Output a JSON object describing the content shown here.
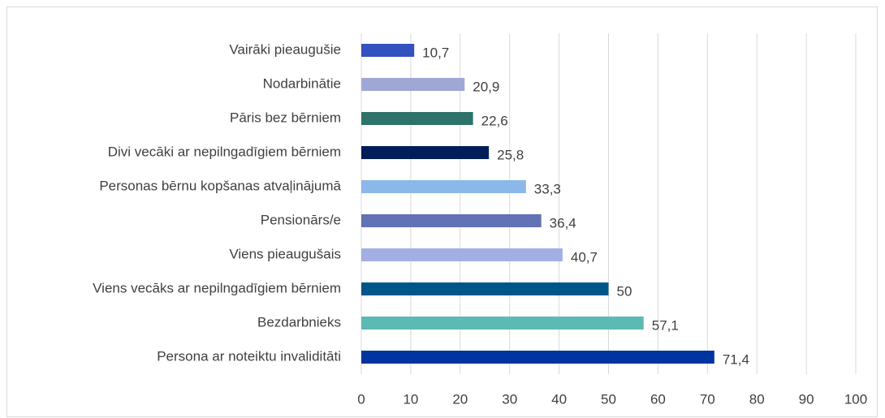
{
  "chart_data": {
    "type": "bar",
    "orientation": "horizontal",
    "categories": [
      "Vairāki pieaugušie",
      "Nodarbinātie",
      "Pāris bez bērniem",
      "Divi vecāki ar nepilngadīgiem bērniem",
      "Personas bērnu kopšanas atvaļinājumā",
      "Pensionārs/e",
      "Viens pieaugušais",
      "Viens vecāks ar nepilngadīgiem bērniem",
      "Bezdarbnieks",
      "Persona ar noteiktu invaliditāti"
    ],
    "values": [
      10.7,
      20.9,
      22.6,
      25.8,
      33.3,
      36.4,
      40.7,
      50,
      57.1,
      71.4
    ],
    "value_labels": [
      "10,7",
      "20,9",
      "22,6",
      "25,8",
      "33,3",
      "36,4",
      "40,7",
      "50",
      "57,1",
      "71,4"
    ],
    "colors": [
      "#3352c0",
      "#9fa8d4",
      "#2e7369",
      "#001e5a",
      "#8ab8e8",
      "#6272b6",
      "#a3afe4",
      "#00568a",
      "#5cbab4",
      "#0035a0"
    ],
    "xlim": [
      0,
      100
    ],
    "xticks": [
      0,
      10,
      20,
      30,
      40,
      50,
      60,
      70,
      80,
      90,
      100
    ],
    "grid": true
  }
}
